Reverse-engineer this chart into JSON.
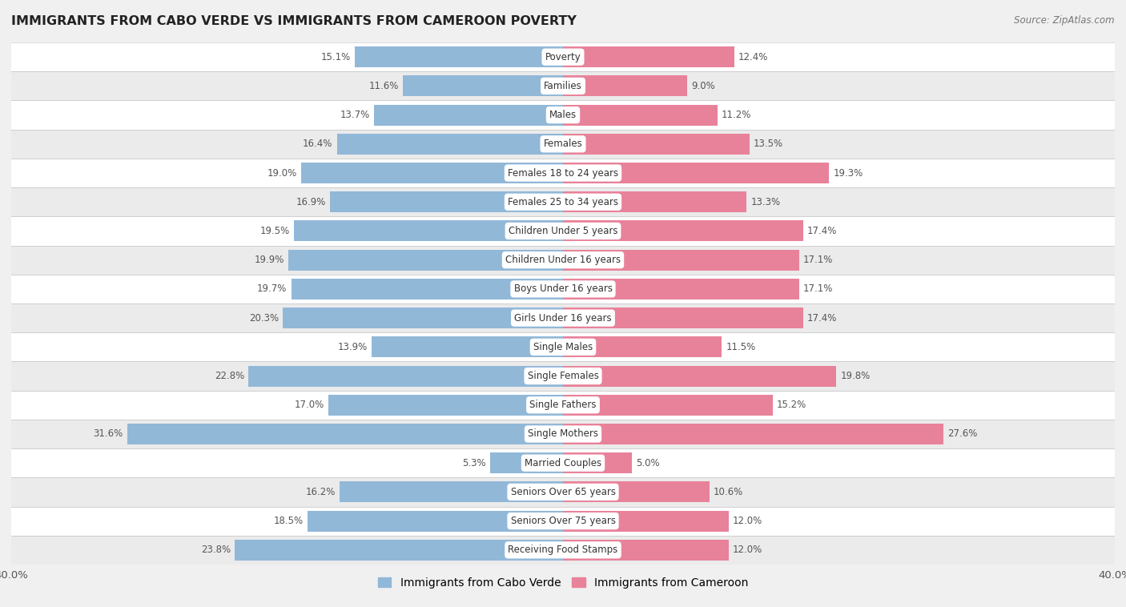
{
  "title": "IMMIGRANTS FROM CABO VERDE VS IMMIGRANTS FROM CAMEROON POVERTY",
  "source": "Source: ZipAtlas.com",
  "categories": [
    "Poverty",
    "Families",
    "Males",
    "Females",
    "Females 18 to 24 years",
    "Females 25 to 34 years",
    "Children Under 5 years",
    "Children Under 16 years",
    "Boys Under 16 years",
    "Girls Under 16 years",
    "Single Males",
    "Single Females",
    "Single Fathers",
    "Single Mothers",
    "Married Couples",
    "Seniors Over 65 years",
    "Seniors Over 75 years",
    "Receiving Food Stamps"
  ],
  "cabo_verde": [
    15.1,
    11.6,
    13.7,
    16.4,
    19.0,
    16.9,
    19.5,
    19.9,
    19.7,
    20.3,
    13.9,
    22.8,
    17.0,
    31.6,
    5.3,
    16.2,
    18.5,
    23.8
  ],
  "cameroon": [
    12.4,
    9.0,
    11.2,
    13.5,
    19.3,
    13.3,
    17.4,
    17.1,
    17.1,
    17.4,
    11.5,
    19.8,
    15.2,
    27.6,
    5.0,
    10.6,
    12.0,
    12.0
  ],
  "cabo_verde_color": "#92b8d8",
  "cameroon_color": "#e8829a",
  "row_colors": [
    "#ffffff",
    "#ebebeb"
  ],
  "xlim": 40.0,
  "bar_height": 0.72,
  "legend_cabo_verde": "Immigrants from Cabo Verde",
  "legend_cameroon": "Immigrants from Cameroon",
  "label_fontsize": 8.5,
  "cat_fontsize": 8.5,
  "title_fontsize": 11.5,
  "source_fontsize": 8.5
}
